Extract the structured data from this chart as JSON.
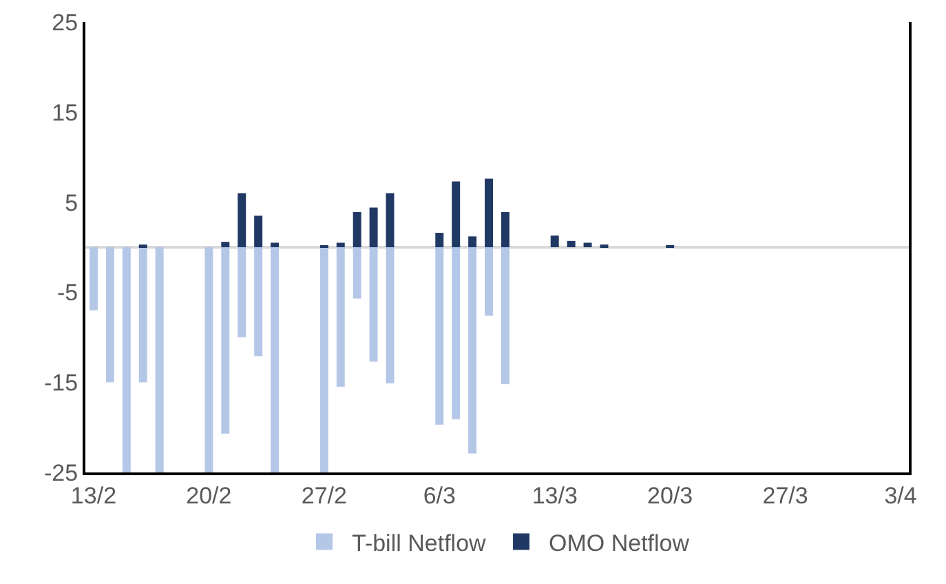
{
  "chart_data": {
    "type": "bar",
    "x": [
      "--02-13",
      "--02-14",
      "--02-15",
      "--02-16",
      "--02-17",
      "--02-20",
      "--02-21",
      "--02-22",
      "--02-23",
      "--02-24",
      "--02-27",
      "--02-28",
      "--03-01",
      "--03-02",
      "--03-03",
      "--03-06",
      "--03-07",
      "--03-08",
      "--03-09",
      "--03-10",
      "--03-13",
      "--03-14",
      "--03-15",
      "--03-16",
      "--03-20"
    ],
    "series": [
      {
        "name": "T-bill Netflow",
        "color": "#b4c7e7",
        "values": [
          -7,
          -15,
          -25,
          -15,
          -25,
          -25,
          -20.7,
          -10,
          -12.1,
          -25,
          -25,
          -15.5,
          -5.7,
          -12.7,
          -15.1,
          -19.7,
          -19.1,
          -22.9,
          -7.6,
          -15.2,
          null,
          null,
          null,
          null,
          null
        ]
      },
      {
        "name": "OMO Netflow",
        "color": "#203864",
        "values": [
          null,
          null,
          null,
          0.3,
          null,
          null,
          0.6,
          6,
          3.5,
          0.5,
          0.2,
          0.5,
          3.9,
          4.4,
          6,
          1.6,
          7.3,
          1.2,
          7.6,
          3.9,
          1.3,
          0.7,
          0.5,
          0.3,
          0.2
        ]
      }
    ],
    "xlim": [
      "--02-12T12:00",
      "--04-03T12:00"
    ],
    "xticks": [
      {
        "value": "--02-13",
        "label": "13/2"
      },
      {
        "value": "--02-20",
        "label": "20/2"
      },
      {
        "value": "--02-27",
        "label": "27/2"
      },
      {
        "value": "--03-06",
        "label": "6/3"
      },
      {
        "value": "--03-13",
        "label": "13/3"
      },
      {
        "value": "--03-20",
        "label": "20/3"
      },
      {
        "value": "--03-27",
        "label": "27/3"
      },
      {
        "value": "--04-03",
        "label": "3/4"
      }
    ],
    "ylim": [
      -25,
      25
    ],
    "yticks": [
      -25,
      -15,
      -5,
      5,
      15,
      25
    ],
    "stacked": true,
    "grid": false,
    "legend": "bottom"
  }
}
